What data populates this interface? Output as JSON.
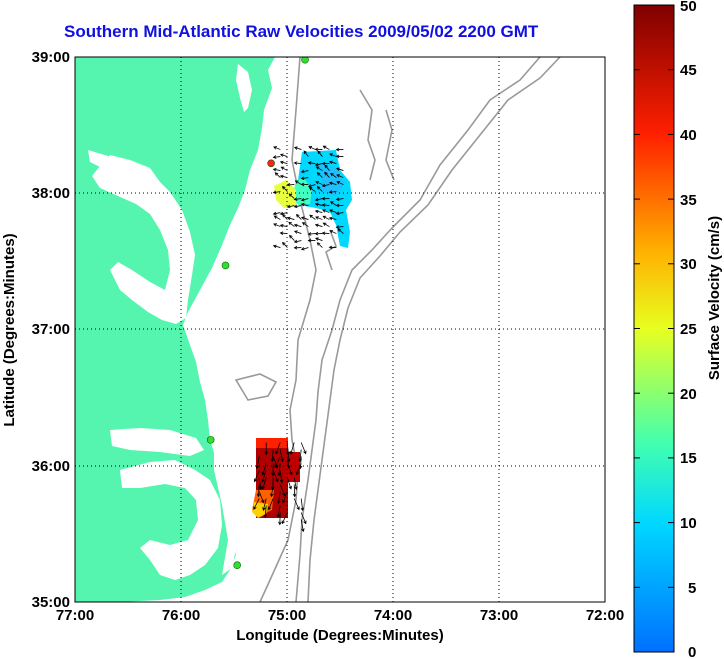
{
  "title": "Southern Mid-Atlantic Raw Velocities 2009/05/02 2200 GMT",
  "xlabel": "Longitude (Degrees:Minutes)",
  "ylabel": "Latitude (Degrees:Minutes)",
  "colorbar_label": "Surface Velocity (cm/s)",
  "x_ticks": [
    "77:00",
    "76:00",
    "75:00",
    "74:00",
    "73:00",
    "72:00"
  ],
  "y_ticks": [
    "39:00",
    "38:00",
    "37:00",
    "36:00",
    "35:00"
  ],
  "colorbar_ticks": [
    "50",
    "45",
    "40",
    "35",
    "30",
    "25",
    "20",
    "15",
    "10",
    "5",
    "0"
  ],
  "colors": {
    "land": "#55f5b0",
    "title": "#1010e0",
    "bathymetry": "#9a9a9a",
    "station": "#33dd33",
    "station_alert": "#ff2020"
  },
  "chart_data": {
    "type": "heatmap",
    "xlim": [
      -77,
      -72
    ],
    "ylim": [
      35,
      39
    ],
    "colorbar_range": [
      0,
      50
    ],
    "stations": [
      {
        "lon": -74.83,
        "lat": 38.98,
        "status": "ok"
      },
      {
        "lon": -75.15,
        "lat": 38.22,
        "status": "alert"
      },
      {
        "lon": -75.58,
        "lat": 37.47,
        "status": "ok"
      },
      {
        "lon": -75.72,
        "lat": 36.19,
        "status": "ok"
      },
      {
        "lon": -75.47,
        "lat": 35.27,
        "status": "ok"
      }
    ],
    "regions": [
      {
        "name": "",
        "lon_range": [
          -75.1,
          -74.45
        ],
        "lat_range": [
          37.6,
          38.35
        ],
        "speed_range": [
          8,
          24
        ]
      },
      {
        "name": "",
        "lon_range": [
          -75.3,
          -74.85
        ],
        "lat_range": [
          35.6,
          36.2
        ],
        "speed_range": [
          25,
          50
        ]
      }
    ]
  }
}
